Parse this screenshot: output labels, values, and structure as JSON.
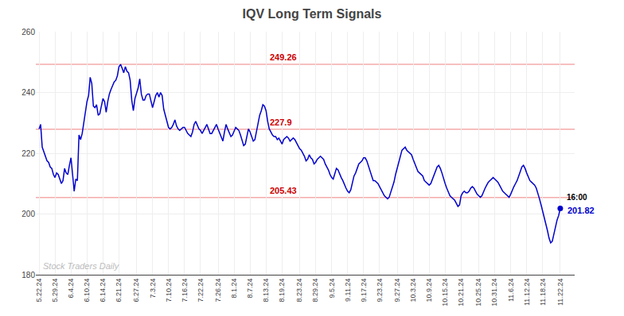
{
  "chart_data": {
    "type": "line",
    "title": "IQV Long Term Signals",
    "categories": [
      "5.22.24",
      null,
      null,
      null,
      null,
      null,
      null,
      null,
      null,
      null,
      "5.29.24",
      null,
      null,
      null,
      null,
      null,
      null,
      null,
      null,
      null,
      "6.4.24",
      null,
      null,
      null,
      null,
      null,
      null,
      null,
      null,
      null,
      "6.10.24",
      null,
      null,
      null,
      null,
      null,
      null,
      null,
      null,
      null,
      "6.14.24",
      null,
      null,
      null,
      null,
      null,
      null,
      null,
      null,
      null,
      "6.21.24",
      null,
      null,
      null,
      null,
      null,
      null,
      null,
      null,
      null,
      null,
      "6.27.24",
      null,
      null,
      null,
      null,
      null,
      null,
      null,
      null,
      null,
      "7.3.24",
      null,
      null,
      null,
      null,
      null,
      null,
      null,
      null,
      null,
      "7.10.24",
      null,
      null,
      null,
      null,
      null,
      null,
      null,
      null,
      null,
      "7.16.24",
      null,
      null,
      null,
      null,
      null,
      null,
      null,
      null,
      null,
      "7.22.24",
      null,
      null,
      null,
      null,
      null,
      null,
      null,
      null,
      null,
      null,
      "7.26.24",
      null,
      null,
      null,
      null,
      null,
      null,
      null,
      null,
      null,
      "8.1.24",
      null,
      null,
      null,
      null,
      null,
      null,
      null,
      null,
      null,
      "8.7.24",
      null,
      null,
      null,
      null,
      null,
      null,
      null,
      null,
      null,
      "8.13.24",
      null,
      null,
      null,
      null,
      null,
      null,
      null,
      null,
      null,
      "8.19.24",
      null,
      null,
      null,
      null,
      null,
      null,
      null,
      null,
      null,
      null,
      "8.23.24",
      null,
      null,
      null,
      null,
      null,
      null,
      null,
      null,
      null,
      "8.29.24",
      null,
      null,
      null,
      null,
      null,
      null,
      null,
      null,
      null,
      "9.5.24",
      null,
      null,
      null,
      null,
      null,
      null,
      null,
      null,
      null,
      "9.11.24",
      null,
      null,
      null,
      null,
      null,
      null,
      null,
      null,
      null,
      "9.17.24",
      null,
      null,
      null,
      null,
      null,
      null,
      null,
      null,
      null,
      "9.23.24",
      null,
      null,
      null,
      null,
      null,
      null,
      null,
      null,
      null,
      null,
      "9.27.24",
      null,
      null,
      null,
      null,
      null,
      null,
      null,
      null,
      null,
      "10.3.24",
      null,
      null,
      null,
      null,
      null,
      null,
      null,
      null,
      null,
      "10.9.24",
      null,
      null,
      null,
      null,
      null,
      null,
      null,
      null,
      null,
      "10.15.24",
      null,
      null,
      null,
      null,
      null,
      null,
      null,
      null,
      null,
      "10.21.24",
      null,
      null,
      null,
      null,
      null,
      null,
      null,
      null,
      null,
      null,
      "10.25.24",
      null,
      null,
      null,
      null,
      null,
      null,
      null,
      null,
      null,
      "10.31.24",
      null,
      null,
      null,
      null,
      null,
      null,
      null,
      null,
      null,
      "11.6.24",
      null,
      null,
      null,
      null,
      null,
      null,
      null,
      null,
      null,
      "11.12.24",
      null,
      null,
      null,
      null,
      null,
      null,
      null,
      null,
      null,
      "11.18.24",
      null,
      null,
      null,
      null,
      null,
      null,
      null,
      null,
      null,
      null,
      "11.22.24"
    ],
    "series": [
      {
        "color": "#0000cc",
        "values": [
          228.0,
          229.5,
          222.0,
          220.5,
          218.5,
          217.5,
          217.0,
          215.5,
          215.0,
          213.0,
          212.0,
          213.5,
          213.0,
          211.5,
          210.0,
          211.0,
          215.0,
          213.5,
          213.0,
          216.0,
          218.5,
          213.0,
          207.5,
          211.5,
          211.0,
          226.0,
          224.5,
          226.5,
          230.0,
          234.0,
          237.0,
          239.0,
          245.0,
          243.0,
          235.5,
          235.0,
          236.0,
          232.5,
          233.0,
          235.5,
          238.0,
          237.0,
          233.5,
          237.0,
          239.5,
          241.0,
          242.5,
          243.5,
          244.0,
          245.5,
          248.5,
          249.26,
          248.0,
          246.5,
          248.5,
          247.0,
          246.5,
          244.0,
          237.5,
          234.0,
          238.0,
          239.5,
          241.5,
          244.5,
          239.5,
          237.5,
          237.5,
          239.0,
          239.5,
          239.5,
          237.5,
          235.0,
          237.0,
          239.0,
          240.0,
          238.5,
          240.0,
          239.0,
          234.5,
          232.5,
          230.5,
          228.5,
          228.0,
          228.5,
          229.5,
          231.0,
          229.0,
          228.0,
          227.5,
          228.0,
          228.5,
          228.5,
          227.5,
          226.5,
          226.0,
          225.5,
          227.0,
          229.5,
          230.5,
          229.0,
          228.0,
          227.5,
          226.5,
          227.5,
          228.5,
          229.5,
          228.0,
          226.5,
          226.5,
          227.5,
          228.5,
          229.5,
          228.0,
          226.5,
          225.5,
          224.0,
          227.0,
          229.5,
          228.0,
          226.5,
          225.5,
          226.0,
          227.5,
          228.5,
          228.0,
          227.5,
          226.0,
          224.5,
          222.5,
          223.0,
          225.5,
          228.0,
          227.0,
          225.5,
          224.0,
          224.5,
          227.5,
          230.0,
          232.5,
          234.0,
          236.0,
          235.5,
          234.0,
          230.5,
          228.0,
          227.0,
          226.0,
          225.5,
          225.5,
          224.5,
          225.0,
          224.0,
          223.0,
          224.5,
          225.0,
          225.5,
          225.0,
          224.0,
          224.5,
          225.0,
          224.5,
          223.5,
          222.5,
          221.5,
          221.0,
          220.0,
          219.0,
          217.5,
          218.0,
          219.5,
          218.5,
          218.0,
          216.5,
          217.0,
          218.0,
          218.5,
          219.0,
          218.5,
          218.0,
          216.5,
          215.5,
          214.5,
          213.0,
          212.0,
          211.5,
          213.5,
          215.0,
          214.5,
          213.0,
          212.0,
          211.0,
          209.5,
          208.5,
          207.5,
          207.0,
          208.0,
          210.0,
          212.5,
          213.5,
          215.0,
          216.5,
          217.0,
          217.5,
          218.5,
          218.5,
          217.5,
          216.0,
          214.0,
          212.5,
          211.0,
          211.0,
          210.5,
          210.0,
          209.0,
          208.0,
          207.0,
          206.0,
          205.5,
          205.0,
          205.5,
          207.0,
          208.5,
          210.5,
          213.0,
          215.0,
          217.0,
          219.5,
          221.0,
          221.5,
          222.0,
          221.0,
          220.5,
          220.0,
          219.5,
          218.0,
          216.5,
          215.0,
          214.0,
          213.5,
          213.0,
          212.5,
          211.0,
          210.5,
          210.0,
          209.5,
          210.0,
          211.5,
          213.0,
          214.5,
          215.5,
          216.0,
          215.0,
          213.5,
          211.5,
          210.0,
          208.5,
          207.0,
          206.0,
          205.5,
          205.0,
          204.5,
          203.5,
          202.5,
          203.0,
          206.0,
          207.0,
          207.5,
          207.0,
          207.0,
          207.5,
          208.5,
          209.0,
          208.5,
          207.5,
          206.5,
          206.0,
          205.5,
          206.0,
          207.5,
          208.5,
          209.5,
          210.5,
          211.0,
          211.5,
          212.0,
          211.5,
          211.0,
          210.5,
          209.5,
          208.5,
          207.5,
          207.0,
          206.5,
          206.0,
          205.5,
          206.5,
          208.0,
          209.0,
          210.0,
          211.0,
          212.5,
          214.0,
          215.5,
          216.0,
          215.0,
          213.5,
          212.0,
          211.0,
          210.5,
          210.0,
          209.5,
          208.5,
          207.0,
          205.0,
          203.0,
          201.0,
          199.0,
          197.0,
          194.5,
          192.0,
          190.5,
          191.0,
          193.5,
          196.0,
          198.0,
          199.5,
          201.82
        ]
      }
    ],
    "ylim": [
      180,
      260
    ],
    "yticks": [
      180,
      200,
      220,
      240,
      260
    ],
    "grid": true,
    "hlines": {
      "values": [
        249.26,
        227.9,
        205.43
      ],
      "color": "#f5aaaa"
    },
    "annotations": [
      {
        "text": "249.26",
        "y": 249.26,
        "color": "#cc0000"
      },
      {
        "text": "227.9",
        "y": 227.9,
        "color": "#cc0000"
      },
      {
        "text": "205.43",
        "y": 205.43,
        "color": "#cc0000"
      }
    ],
    "end_labels": [
      {
        "text": "16:00",
        "color": "#000000"
      },
      {
        "text": "201.82",
        "color": "#0000cc"
      }
    ],
    "watermark": {
      "text": "Stock Traders Daily",
      "color": "#bbbbbb"
    }
  }
}
